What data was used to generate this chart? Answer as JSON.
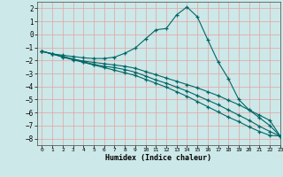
{
  "xlabel": "Humidex (Indice chaleur)",
  "bg_color": "#cce8e8",
  "grid_color": "#e8a0a0",
  "line_color": "#006666",
  "xlim": [
    -0.5,
    23
  ],
  "ylim": [
    -8.5,
    2.5
  ],
  "yticks": [
    2,
    1,
    0,
    -1,
    -2,
    -3,
    -4,
    -5,
    -6,
    -7,
    -8
  ],
  "xticks": [
    0,
    1,
    2,
    3,
    4,
    5,
    6,
    7,
    8,
    9,
    10,
    11,
    12,
    13,
    14,
    15,
    16,
    17,
    18,
    19,
    20,
    21,
    22,
    23
  ],
  "lines": [
    {
      "x": [
        0,
        1,
        2,
        3,
        4,
        5,
        6,
        7,
        8,
        9,
        10,
        11,
        12,
        13,
        14,
        15,
        16,
        17,
        18,
        19,
        20,
        21,
        22,
        23
      ],
      "y": [
        -1.3,
        -1.5,
        -1.6,
        -1.7,
        -1.8,
        -1.85,
        -1.85,
        -1.75,
        -1.45,
        -1.05,
        -0.35,
        0.35,
        0.45,
        1.5,
        2.1,
        1.35,
        -0.4,
        -2.1,
        -3.4,
        -5.0,
        -5.8,
        -6.4,
        -7.0,
        -7.8
      ]
    },
    {
      "x": [
        0,
        1,
        2,
        3,
        4,
        5,
        6,
        7,
        8,
        9,
        10,
        11,
        12,
        13,
        14,
        15,
        16,
        17,
        18,
        19,
        20,
        21,
        22,
        23
      ],
      "y": [
        -1.3,
        -1.5,
        -1.7,
        -1.9,
        -2.05,
        -2.15,
        -2.25,
        -2.35,
        -2.45,
        -2.6,
        -2.85,
        -3.1,
        -3.35,
        -3.6,
        -3.85,
        -4.1,
        -4.4,
        -4.7,
        -5.05,
        -5.4,
        -5.8,
        -6.2,
        -6.6,
        -7.8
      ]
    },
    {
      "x": [
        0,
        1,
        2,
        3,
        4,
        5,
        6,
        7,
        8,
        9,
        10,
        11,
        12,
        13,
        14,
        15,
        16,
        17,
        18,
        19,
        20,
        21,
        22,
        23
      ],
      "y": [
        -1.3,
        -1.5,
        -1.7,
        -1.9,
        -2.1,
        -2.3,
        -2.45,
        -2.55,
        -2.7,
        -2.9,
        -3.2,
        -3.5,
        -3.75,
        -4.05,
        -4.35,
        -4.7,
        -5.05,
        -5.4,
        -5.8,
        -6.2,
        -6.6,
        -7.05,
        -7.45,
        -7.8
      ]
    },
    {
      "x": [
        0,
        1,
        2,
        3,
        4,
        5,
        6,
        7,
        8,
        9,
        10,
        11,
        12,
        13,
        14,
        15,
        16,
        17,
        18,
        19,
        20,
        21,
        22,
        23
      ],
      "y": [
        -1.3,
        -1.5,
        -1.75,
        -1.95,
        -2.15,
        -2.35,
        -2.55,
        -2.75,
        -2.95,
        -3.15,
        -3.45,
        -3.75,
        -4.05,
        -4.4,
        -4.75,
        -5.15,
        -5.55,
        -5.95,
        -6.35,
        -6.7,
        -7.1,
        -7.45,
        -7.75,
        -7.8
      ]
    }
  ]
}
